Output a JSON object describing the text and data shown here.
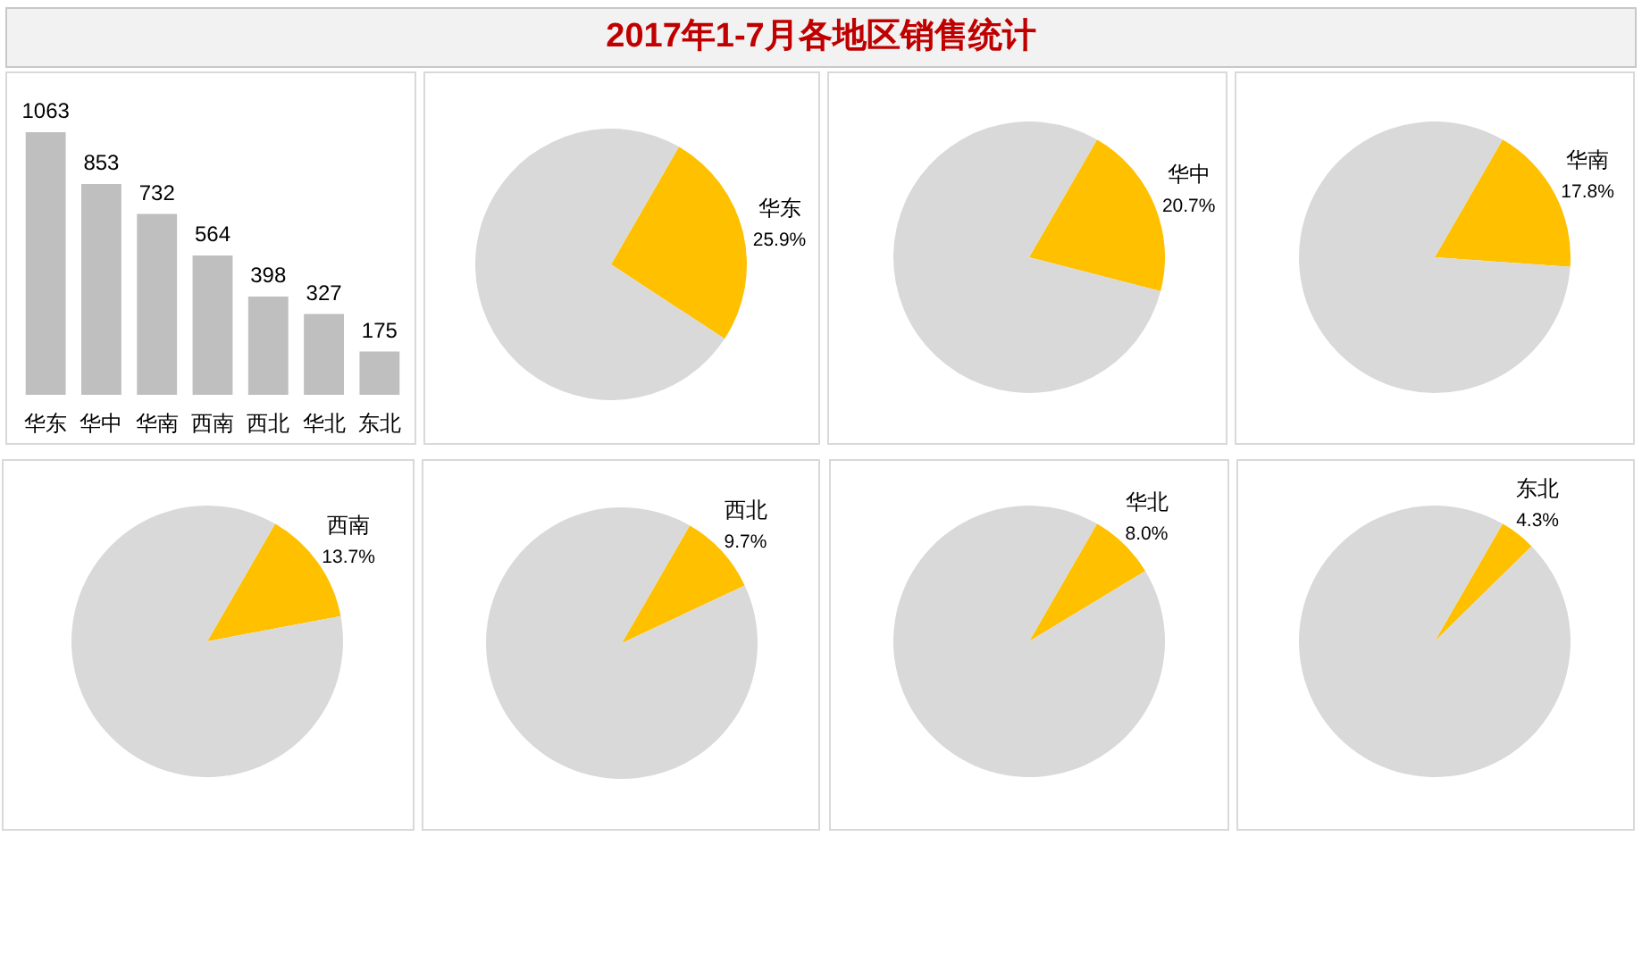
{
  "chart_data": [
    {
      "type": "other",
      "title": "2017年1-7月各地区销售统计"
    },
    {
      "type": "bar",
      "categories": [
        "华东",
        "华中",
        "华南",
        "西南",
        "西北",
        "华北",
        "东北"
      ],
      "values": [
        1063,
        853,
        732,
        564,
        398,
        327,
        175
      ],
      "color": "#bfbfbf",
      "data_labels": true
    },
    {
      "type": "pie",
      "categories": [
        "华东",
        null
      ],
      "values": [
        25.9,
        74.1
      ],
      "colors": [
        "#ffc000",
        "#d9d9d9"
      ],
      "value_labels": [
        "25.9%",
        null
      ]
    },
    {
      "type": "pie",
      "categories": [
        "华中",
        null
      ],
      "values": [
        20.7,
        79.3
      ],
      "colors": [
        "#ffc000",
        "#d9d9d9"
      ],
      "value_labels": [
        "20.7%",
        null
      ]
    },
    {
      "type": "pie",
      "categories": [
        "华南",
        null
      ],
      "values": [
        17.8,
        82.2
      ],
      "colors": [
        "#ffc000",
        "#d9d9d9"
      ],
      "value_labels": [
        "17.8%",
        null
      ]
    },
    {
      "type": "pie",
      "categories": [
        "西南",
        null
      ],
      "values": [
        13.7,
        86.3
      ],
      "colors": [
        "#ffc000",
        "#d9d9d9"
      ],
      "value_labels": [
        "13.7%",
        null
      ]
    },
    {
      "type": "pie",
      "categories": [
        "西北",
        null
      ],
      "values": [
        9.7,
        90.3
      ],
      "colors": [
        "#ffc000",
        "#d9d9d9"
      ],
      "value_labels": [
        "9.7%",
        null
      ]
    },
    {
      "type": "pie",
      "categories": [
        "华北",
        null
      ],
      "values": [
        8.0,
        92.0
      ],
      "colors": [
        "#ffc000",
        "#d9d9d9"
      ],
      "value_labels": [
        "8.0%",
        null
      ]
    },
    {
      "type": "pie",
      "categories": [
        "东北",
        null
      ],
      "values": [
        4.3,
        95.7
      ],
      "colors": [
        "#ffc000",
        "#d9d9d9"
      ],
      "value_labels": [
        "4.3%",
        null
      ]
    }
  ]
}
